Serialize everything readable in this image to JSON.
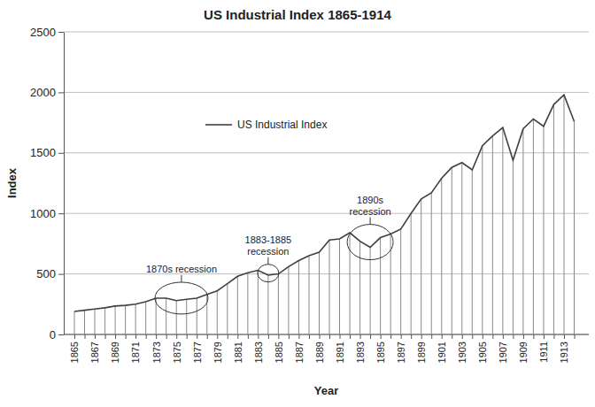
{
  "chart_data": {
    "type": "line",
    "title": "US Industrial Index 1865-1914",
    "x_label": "Year",
    "y_label": "Index",
    "categories": [
      "1865",
      null,
      "1867",
      null,
      "1869",
      null,
      "1871",
      null,
      "1873",
      null,
      "1875",
      null,
      "1877",
      null,
      "1879",
      null,
      "1881",
      null,
      "1883",
      null,
      "1885",
      null,
      "1887",
      null,
      "1889",
      null,
      "1891",
      null,
      "1893",
      null,
      "1895",
      null,
      "1897",
      null,
      "1899",
      null,
      "1901",
      null,
      "1903",
      null,
      "1905",
      null,
      "1907",
      null,
      "1909",
      null,
      "1911",
      null,
      "1913",
      null
    ],
    "series": [
      {
        "name": "US Industrial Index",
        "color": "#404040",
        "values": [
          190,
          200,
          210,
          220,
          235,
          240,
          250,
          270,
          300,
          300,
          280,
          290,
          300,
          330,
          360,
          420,
          480,
          510,
          530,
          490,
          500,
          560,
          610,
          650,
          680,
          780,
          790,
          840,
          770,
          720,
          800,
          830,
          870,
          1000,
          1120,
          1170,
          1290,
          1380,
          1420,
          1360,
          1560,
          1640,
          1710,
          1440,
          1700,
          1780,
          1720,
          1900,
          1980,
          1760
        ]
      }
    ],
    "ylim": [
      0,
      2500
    ],
    "yticks": [
      0,
      500,
      1000,
      1500,
      2000,
      2500
    ],
    "grid": true,
    "legend": "upper left",
    "annotations": [
      "1870s recession",
      "1883-1885 recession",
      "1890s recession"
    ]
  }
}
